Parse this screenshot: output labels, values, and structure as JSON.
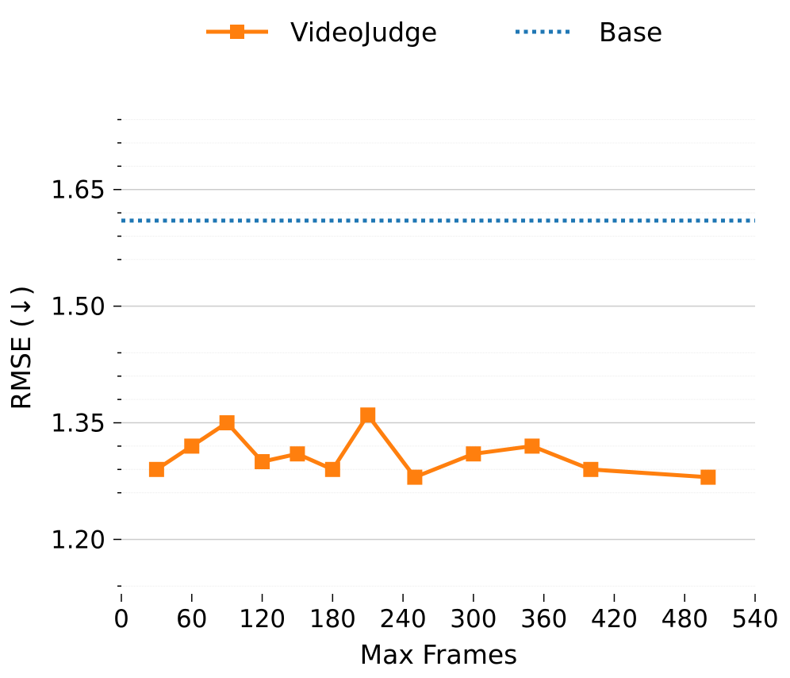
{
  "chart_data": {
    "type": "line",
    "xlabel": "Max Frames",
    "ylabel": "RMSE (↓)",
    "xlim": [
      0,
      540
    ],
    "ylim": [
      1.13,
      1.76
    ],
    "xticks": [
      0,
      60,
      120,
      180,
      240,
      300,
      360,
      420,
      480,
      540
    ],
    "xtick_labels": [
      "0",
      "60",
      "120",
      "180",
      "240",
      "300",
      "360",
      "420",
      "480",
      "540"
    ],
    "yticks": [
      1.2,
      1.35,
      1.5,
      1.65
    ],
    "ytick_labels": [
      "1.20",
      "1.35",
      "1.50",
      "1.65"
    ],
    "yminor_ticks": [
      1.14,
      1.26,
      1.29,
      1.32,
      1.38,
      1.41,
      1.44,
      1.56,
      1.59,
      1.62,
      1.68,
      1.71,
      1.74
    ],
    "grid": true,
    "legend_position": "top-center",
    "series": [
      {
        "name": "VideoJudge",
        "style": "solid-line-square-marker",
        "color": "#ff7f0e",
        "x": [
          30,
          60,
          90,
          120,
          150,
          180,
          210,
          250,
          300,
          350,
          400,
          500
        ],
        "y": [
          1.29,
          1.32,
          1.35,
          1.3,
          1.31,
          1.29,
          1.36,
          1.28,
          1.31,
          1.32,
          1.29,
          1.28
        ]
      },
      {
        "name": "Base",
        "style": "dotted-line",
        "color": "#1f77b4",
        "y_constant": 1.61
      }
    ]
  }
}
